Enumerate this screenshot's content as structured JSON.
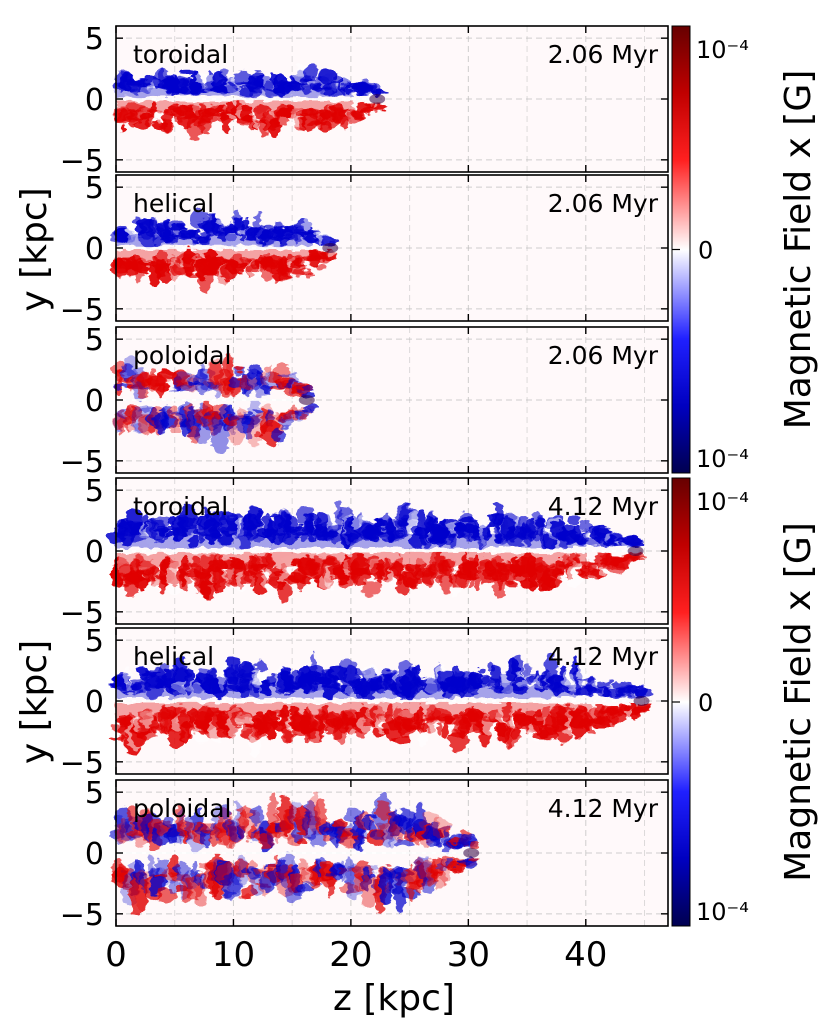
{
  "chart_data": {
    "type": "heatmap",
    "xlabel": "z [kpc]",
    "xticks": [
      "0",
      "10",
      "20",
      "30",
      "40"
    ],
    "xlim": [
      0,
      47
    ],
    "ylim": [
      -6,
      6
    ],
    "yticks": [
      "5",
      "0",
      "−5"
    ],
    "groups": [
      {
        "ylabel": "y [kpc]",
        "colorbar": {
          "label": "Magnetic Field x [G]",
          "top_label": "10⁻⁴",
          "mid_label": "0",
          "bottom_label": "10⁻⁴"
        },
        "panels": [
          {
            "config": "toroidal",
            "time": "2.06 Myr",
            "extent_kpc": 22.5,
            "upper_width_kpc": 1.7,
            "lower_width_kpc": 2.0,
            "sign_upper": "negative",
            "sign_lower": "positive"
          },
          {
            "config": "helical",
            "time": "2.06 Myr",
            "extent_kpc": 18.5,
            "upper_width_kpc": 1.9,
            "lower_width_kpc": 2.2,
            "sign_upper": "negative",
            "sign_lower": "positive"
          },
          {
            "config": "poloidal",
            "time": "2.06 Myr",
            "extent_kpc": 16.5,
            "upper_width_kpc": 2.5,
            "lower_width_kpc": 2.5,
            "sign_upper": "mixed",
            "sign_lower": "mixed"
          }
        ]
      },
      {
        "ylabel": "y [kpc]",
        "colorbar": {
          "label": "Magnetic Field x [G]",
          "top_label": "10⁻⁴",
          "mid_label": "0",
          "bottom_label": "10⁻⁴"
        },
        "panels": [
          {
            "config": "toroidal",
            "time": "4.12 Myr",
            "extent_kpc": 44.5,
            "upper_width_kpc": 2.5,
            "lower_width_kpc": 2.6,
            "sign_upper": "negative",
            "sign_lower": "positive"
          },
          {
            "config": "helical",
            "time": "4.12 Myr",
            "extent_kpc": 45.0,
            "upper_width_kpc": 2.4,
            "lower_width_kpc": 2.7,
            "sign_upper": "negative",
            "sign_lower": "positive"
          },
          {
            "config": "poloidal",
            "time": "4.12 Myr",
            "extent_kpc": 30.5,
            "upper_width_kpc": 3.0,
            "lower_width_kpc": 3.0,
            "sign_upper": "mixed",
            "sign_lower": "mixed"
          }
        ]
      }
    ],
    "colors": {
      "negative": "#0000cc",
      "positive": "#e00000",
      "zero": "#ffffff",
      "grid": "#bbbbbb"
    }
  }
}
